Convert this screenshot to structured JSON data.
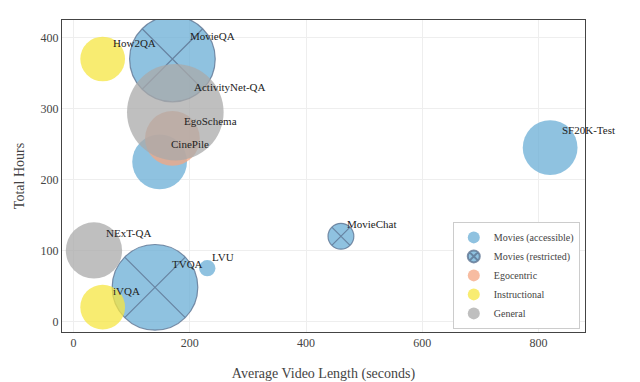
{
  "chart_data": {
    "type": "bubble",
    "xlabel": "Average Video Length (seconds)",
    "ylabel": "Total Hours",
    "xlim": [
      -20,
      880
    ],
    "ylim": [
      -15,
      425
    ],
    "xticks": [
      0,
      200,
      400,
      600,
      800
    ],
    "yticks": [
      0,
      100,
      200,
      300,
      400
    ],
    "grid": true,
    "legend": "lower right",
    "series": [
      {
        "name": "Movies (accessible)",
        "color": "#6aaed6",
        "marker": "solid",
        "labels": [
          "CinePile",
          "LVU",
          "SF20K-Test"
        ],
        "x": [
          148,
          230,
          820
        ],
        "y": [
          225,
          75,
          245
        ],
        "size": [
          900,
          80,
          900
        ]
      },
      {
        "name": "Movies (restricted)",
        "color": "#6aaed6",
        "marker": "hatched",
        "labels": [
          "MovieQA",
          "MovieChat",
          "TVQA"
        ],
        "x": [
          170,
          460,
          140
        ],
        "y": [
          370,
          120,
          48
        ],
        "size": [
          2200,
          200,
          2200
        ]
      },
      {
        "name": "Egocentric",
        "color": "#f4a582",
        "marker": "solid",
        "labels": [
          "EgoSchema"
        ],
        "x": [
          170
        ],
        "y": [
          258
        ],
        "size": [
          900
        ]
      },
      {
        "name": "Instructional",
        "color": "#f5e642",
        "marker": "solid",
        "labels": [
          "How2QA",
          "iVQA"
        ],
        "x": [
          50,
          50
        ],
        "y": [
          370,
          20
        ],
        "size": [
          600,
          600
        ]
      },
      {
        "name": "General",
        "color": "#aaaaaa",
        "marker": "solid",
        "labels": [
          "ActivityNet-QA",
          "NExT-QA"
        ],
        "x": [
          175,
          35
        ],
        "y": [
          295,
          100
        ],
        "size": [
          2800,
          950
        ]
      }
    ]
  }
}
